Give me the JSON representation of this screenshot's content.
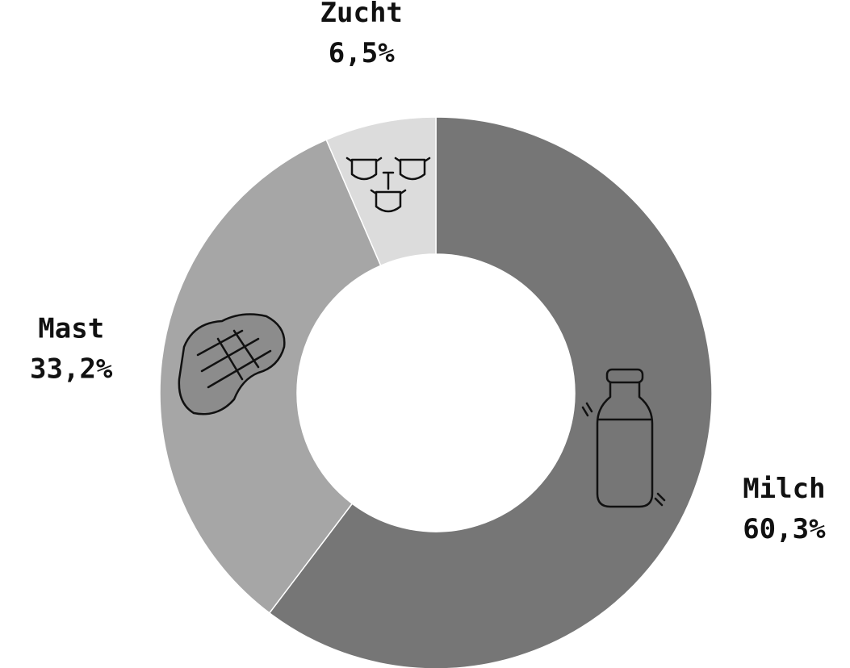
{
  "chart_data": {
    "type": "donut",
    "categories": [
      "Milch",
      "Mast",
      "Zucht"
    ],
    "values": [
      60.3,
      33.2,
      6.5
    ],
    "value_labels": [
      "60,3%",
      "33,2%",
      "6,5%"
    ],
    "colors": [
      "#767676",
      "#a6a6a6",
      "#dcdcdc"
    ]
  }
}
